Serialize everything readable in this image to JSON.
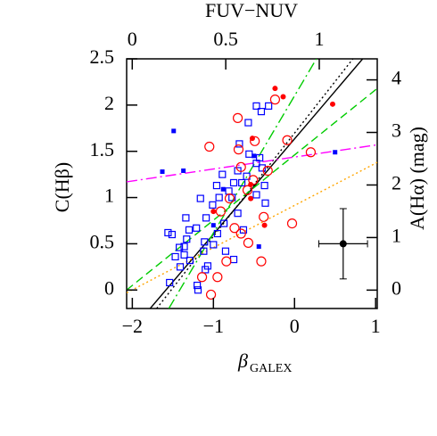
{
  "chart_data": {
    "type": "scatter",
    "title": "FUV−NUV",
    "xlabel": "β",
    "xlabel_sub": "GALEX",
    "ylabel": "C(Hβ)",
    "y2label": "A(Hα)   (mag)",
    "xlim": [
      -2.07,
      1.02
    ],
    "ylim": [
      -0.2,
      2.5
    ],
    "x2lim": [
      -0.03,
      1.31
    ],
    "y2lim": [
      -0.35,
      4.4
    ],
    "xticks": [
      {
        "value": -2,
        "label": "−2"
      },
      {
        "value": -1,
        "label": "−1"
      },
      0,
      1
    ],
    "yticks": [
      0,
      0.5,
      1,
      1.5,
      2,
      2.5
    ],
    "x2ticks": [
      0,
      0.5,
      1
    ],
    "y2ticks": [
      0,
      1,
      2,
      3,
      4
    ],
    "series": [
      {
        "marker": "open-square",
        "color": "#0000ff",
        "x": [
          -0.32,
          -0.47,
          -0.41,
          -0.57,
          -0.68,
          -0.56,
          -0.47,
          -0.43,
          -0.4,
          -0.7,
          -0.89,
          -0.75,
          -0.65,
          -0.59,
          -0.37,
          -0.36,
          -0.81,
          -0.77,
          -0.93,
          -1.01,
          -1.16,
          -1.09,
          -0.87,
          -1.34,
          -1.3,
          -1.21,
          -1.56,
          -1.51,
          -1.33,
          -1.11,
          -1.0,
          -1.12,
          -1.36,
          -1.36,
          -1.29,
          -1.41,
          -1.07,
          -1.42,
          -1.1,
          -0.85,
          -0.75,
          -0.63,
          -0.7,
          -0.95,
          -1.2,
          -1.19,
          -1.54,
          -1.47,
          -0.47,
          -0.96
        ],
        "values": [
          1.99,
          1.99,
          1.93,
          1.81,
          1.58,
          1.47,
          1.37,
          1.43,
          1.32,
          1.29,
          1.25,
          1.16,
          1.16,
          1.23,
          1.13,
          0.94,
          1.07,
          1.0,
          1.0,
          0.92,
          0.99,
          0.78,
          0.72,
          0.78,
          0.65,
          0.67,
          0.62,
          0.6,
          0.55,
          0.52,
          0.49,
          0.42,
          0.47,
          0.38,
          0.32,
          0.25,
          0.26,
          0.46,
          0.22,
          0.42,
          0.33,
          0.65,
          0.83,
          0.61,
          0.05,
          0.0,
          0.08,
          0.36,
          1.03,
          1.13
        ]
      },
      {
        "marker": "open-circle",
        "color": "#ff0000",
        "x": [
          -0.24,
          -0.7,
          -1.05,
          -0.49,
          -0.09,
          0.2,
          -0.69,
          -0.66,
          -0.33,
          -0.51,
          -0.58,
          -0.8,
          -0.38,
          -0.03,
          -0.91,
          -0.66,
          -0.57,
          -0.84,
          -0.41,
          -1.14,
          -0.95,
          -1.03,
          -0.74
        ],
        "values": [
          2.06,
          1.86,
          1.55,
          1.61,
          1.62,
          1.49,
          1.52,
          1.33,
          1.29,
          1.19,
          1.08,
          0.99,
          0.79,
          0.72,
          0.85,
          0.61,
          0.51,
          0.31,
          0.31,
          0.14,
          0.14,
          -0.05,
          0.67
        ]
      },
      {
        "marker": "filled-circle",
        "color": "#ff0000",
        "x": [
          -0.24,
          -0.14,
          0.47,
          -0.52,
          -0.54,
          -0.54,
          -0.37,
          -1.0
        ],
        "values": [
          2.18,
          2.09,
          2.01,
          1.64,
          1.14,
          0.99,
          0.7,
          0.85
        ]
      },
      {
        "marker": "filled-square",
        "color": "#0000ff",
        "x": [
          -1.49,
          -1.63,
          -1.37,
          -0.5,
          0.5,
          -0.44,
          -1.0,
          -0.88
        ],
        "values": [
          1.72,
          1.28,
          1.29,
          1.45,
          1.49,
          0.47,
          0.7,
          1.09
        ]
      },
      {
        "marker": "errorbar",
        "color": "#000000",
        "x": [
          0.6
        ],
        "values": [
          0.5
        ],
        "xerr": [
          0.3
        ],
        "yerr": [
          0.38
        ]
      }
    ],
    "lines": [
      {
        "color": "#000000",
        "linestyle": "solid",
        "x": [
          -1.78,
          0.84
        ],
        "values": [
          -0.2,
          2.5
        ]
      },
      {
        "color": "#000000",
        "linestyle": "dotted",
        "x": [
          -1.7,
          0.72
        ],
        "values": [
          -0.2,
          2.5
        ]
      },
      {
        "color": "#00cc00",
        "linestyle": "dashdot",
        "x": [
          -1.55,
          0.27
        ],
        "values": [
          -0.2,
          2.5
        ]
      },
      {
        "color": "#00cc00",
        "linestyle": "dashed",
        "x": [
          -2.07,
          1.02
        ],
        "values": [
          0.0,
          2.18
        ]
      },
      {
        "color": "#ff00ff",
        "linestyle": "dashdot",
        "x": [
          -2.07,
          1.02
        ],
        "values": [
          1.17,
          1.57
        ]
      },
      {
        "color": "#ffa500",
        "linestyle": "dotted",
        "x": [
          -2.07,
          1.02
        ],
        "values": [
          -0.03,
          1.38
        ]
      }
    ]
  }
}
